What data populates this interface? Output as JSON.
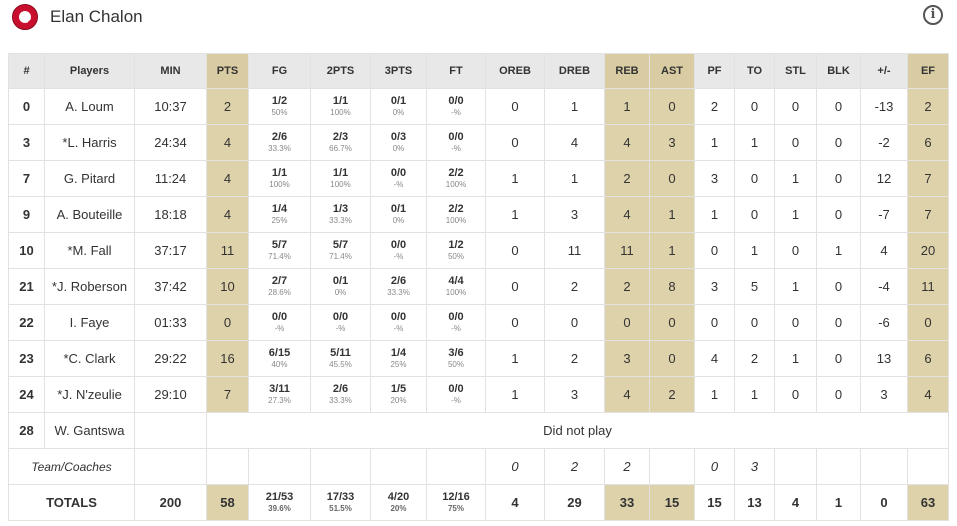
{
  "team": {
    "name": "Elan Chalon",
    "logo_icon": "club-crest-icon",
    "info_icon": "info-icon"
  },
  "colors": {
    "header_bg": "#e8e8e8",
    "highlight": "#ded2aa",
    "border": "#e2e2e2"
  },
  "columns": [
    "#",
    "Players",
    "MIN",
    "PTS",
    "FG",
    "2PTS",
    "3PTS",
    "FT",
    "OREB",
    "DREB",
    "REB",
    "AST",
    "PF",
    "TO",
    "STL",
    "BLK",
    "+/-",
    "EF"
  ],
  "rows": [
    {
      "num": "0",
      "name": "A. Loum",
      "min": "10:37",
      "pts": "2",
      "fg": "1/2",
      "fg_pct": "50%",
      "p2": "1/1",
      "p2_pct": "100%",
      "p3": "0/1",
      "p3_pct": "0%",
      "ft": "0/0",
      "ft_pct": "-%",
      "oreb": "0",
      "dreb": "1",
      "reb": "1",
      "ast": "0",
      "pf": "2",
      "to": "0",
      "stl": "0",
      "blk": "0",
      "pm": "-13",
      "ef": "2"
    },
    {
      "num": "3",
      "name": "*L. Harris",
      "min": "24:34",
      "pts": "4",
      "fg": "2/6",
      "fg_pct": "33.3%",
      "p2": "2/3",
      "p2_pct": "66.7%",
      "p3": "0/3",
      "p3_pct": "0%",
      "ft": "0/0",
      "ft_pct": "-%",
      "oreb": "0",
      "dreb": "4",
      "reb": "4",
      "ast": "3",
      "pf": "1",
      "to": "1",
      "stl": "0",
      "blk": "0",
      "pm": "-2",
      "ef": "6"
    },
    {
      "num": "7",
      "name": "G. Pitard",
      "min": "11:24",
      "pts": "4",
      "fg": "1/1",
      "fg_pct": "100%",
      "p2": "1/1",
      "p2_pct": "100%",
      "p3": "0/0",
      "p3_pct": "-%",
      "ft": "2/2",
      "ft_pct": "100%",
      "oreb": "1",
      "dreb": "1",
      "reb": "2",
      "ast": "0",
      "pf": "3",
      "to": "0",
      "stl": "1",
      "blk": "0",
      "pm": "12",
      "ef": "7"
    },
    {
      "num": "9",
      "name": "A. Bouteille",
      "min": "18:18",
      "pts": "4",
      "fg": "1/4",
      "fg_pct": "25%",
      "p2": "1/3",
      "p2_pct": "33.3%",
      "p3": "0/1",
      "p3_pct": "0%",
      "ft": "2/2",
      "ft_pct": "100%",
      "oreb": "1",
      "dreb": "3",
      "reb": "4",
      "ast": "1",
      "pf": "1",
      "to": "0",
      "stl": "1",
      "blk": "0",
      "pm": "-7",
      "ef": "7"
    },
    {
      "num": "10",
      "name": "*M. Fall",
      "min": "37:17",
      "pts": "11",
      "fg": "5/7",
      "fg_pct": "71.4%",
      "p2": "5/7",
      "p2_pct": "71.4%",
      "p3": "0/0",
      "p3_pct": "-%",
      "ft": "1/2",
      "ft_pct": "50%",
      "oreb": "0",
      "dreb": "11",
      "reb": "11",
      "ast": "1",
      "pf": "0",
      "to": "1",
      "stl": "0",
      "blk": "1",
      "pm": "4",
      "ef": "20"
    },
    {
      "num": "21",
      "name": "*J. Roberson",
      "min": "37:42",
      "pts": "10",
      "fg": "2/7",
      "fg_pct": "28.6%",
      "p2": "0/1",
      "p2_pct": "0%",
      "p3": "2/6",
      "p3_pct": "33.3%",
      "ft": "4/4",
      "ft_pct": "100%",
      "oreb": "0",
      "dreb": "2",
      "reb": "2",
      "ast": "8",
      "pf": "3",
      "to": "5",
      "stl": "1",
      "blk": "0",
      "pm": "-4",
      "ef": "11"
    },
    {
      "num": "22",
      "name": "I. Faye",
      "min": "01:33",
      "pts": "0",
      "fg": "0/0",
      "fg_pct": "-%",
      "p2": "0/0",
      "p2_pct": "-%",
      "p3": "0/0",
      "p3_pct": "-%",
      "ft": "0/0",
      "ft_pct": "-%",
      "oreb": "0",
      "dreb": "0",
      "reb": "0",
      "ast": "0",
      "pf": "0",
      "to": "0",
      "stl": "0",
      "blk": "0",
      "pm": "-6",
      "ef": "0"
    },
    {
      "num": "23",
      "name": "*C. Clark",
      "min": "29:22",
      "pts": "16",
      "fg": "6/15",
      "fg_pct": "40%",
      "p2": "5/11",
      "p2_pct": "45.5%",
      "p3": "1/4",
      "p3_pct": "25%",
      "ft": "3/6",
      "ft_pct": "50%",
      "oreb": "1",
      "dreb": "2",
      "reb": "3",
      "ast": "0",
      "pf": "4",
      "to": "2",
      "stl": "1",
      "blk": "0",
      "pm": "13",
      "ef": "6"
    },
    {
      "num": "24",
      "name": "*J. N'zeulie",
      "min": "29:10",
      "pts": "7",
      "fg": "3/11",
      "fg_pct": "27.3%",
      "p2": "2/6",
      "p2_pct": "33.3%",
      "p3": "1/5",
      "p3_pct": "20%",
      "ft": "0/0",
      "ft_pct": "-%",
      "oreb": "1",
      "dreb": "3",
      "reb": "4",
      "ast": "2",
      "pf": "1",
      "to": "1",
      "stl": "0",
      "blk": "0",
      "pm": "3",
      "ef": "4"
    }
  ],
  "dnp_row": {
    "num": "28",
    "name": "W. Gantswa",
    "label": "Did not play"
  },
  "coaches_row": {
    "label": "Team/Coaches",
    "oreb": "0",
    "dreb": "2",
    "reb": "2",
    "ast": "",
    "pf": "0",
    "to": "3"
  },
  "totals": {
    "label": "TOTALS",
    "min": "200",
    "pts": "58",
    "fg": "21/53",
    "fg_pct": "39.6%",
    "p2": "17/33",
    "p2_pct": "51.5%",
    "p3": "4/20",
    "p3_pct": "20%",
    "ft": "12/16",
    "ft_pct": "75%",
    "oreb": "4",
    "dreb": "29",
    "reb": "33",
    "ast": "15",
    "pf": "15",
    "to": "13",
    "stl": "4",
    "blk": "1",
    "pm": "0",
    "ef": "63"
  }
}
